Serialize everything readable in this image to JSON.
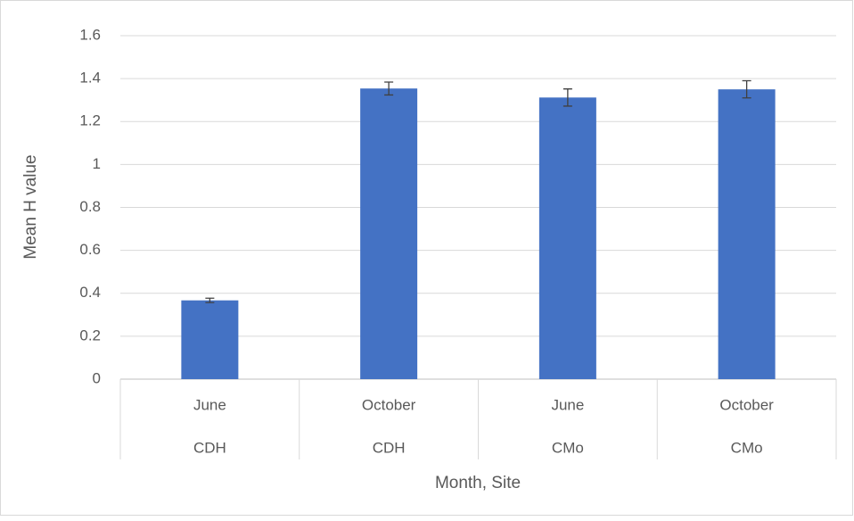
{
  "chart_data": {
    "type": "bar",
    "x_label": "Month, Site",
    "y_label": "Mean H value",
    "categories": [
      "June",
      "October",
      "June",
      "October"
    ],
    "groups": [
      "CDH",
      "CDH",
      "CMo",
      "CMo"
    ],
    "values": [
      0.367,
      1.354,
      1.312,
      1.35
    ],
    "errors": [
      0.01,
      0.03,
      0.04,
      0.04
    ],
    "color": "#4472c4",
    "ylim": [
      0,
      1.6
    ],
    "yticks": [
      0,
      0.2,
      0.4,
      0.6,
      0.8,
      1,
      1.2,
      1.4,
      1.6
    ],
    "grid": true
  }
}
